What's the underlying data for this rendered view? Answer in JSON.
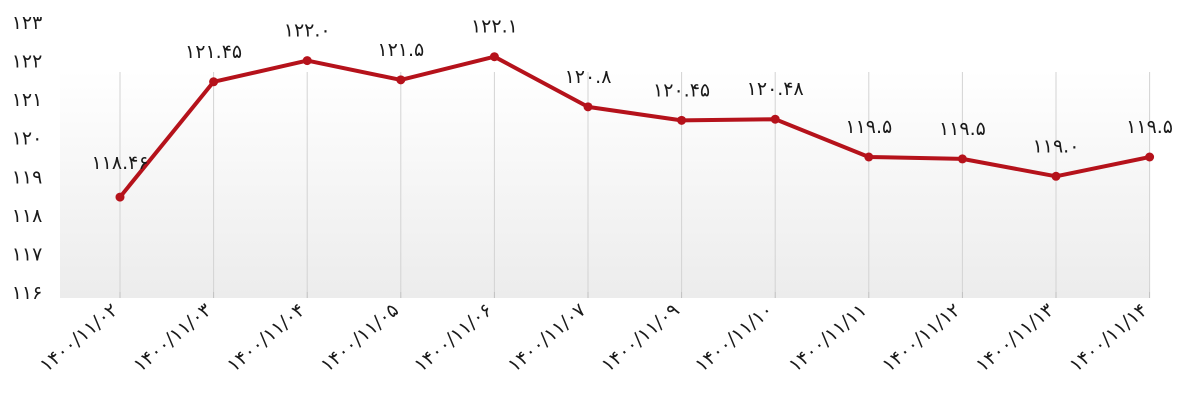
{
  "chart_data": {
    "type": "line",
    "title": "",
    "xlabel": "",
    "ylabel": "",
    "categories": [
      "۱۴۰۰/۱۱/۰۲",
      "۱۴۰۰/۱۱/۰۳",
      "۱۴۰۰/۱۱/۰۴",
      "۱۴۰۰/۱۱/۰۵",
      "۱۴۰۰/۱۱/۰۶",
      "۱۴۰۰/۱۱/۰۷",
      "۱۴۰۰/۱۱/۰۹",
      "۱۴۰۰/۱۱/۱۰",
      "۱۴۰۰/۱۱/۱۱",
      "۱۴۰۰/۱۱/۱۲",
      "۱۴۰۰/۱۱/۱۳",
      "۱۴۰۰/۱۱/۱۴"
    ],
    "values": [
      118.46,
      121.45,
      122.0,
      121.5,
      122.1,
      120.8,
      120.45,
      120.48,
      119.5,
      119.45,
      119.0,
      119.5
    ],
    "data_labels": [
      "۱۱۸.۴۶",
      "۱۲۱.۴۵",
      "۱۲۲.۰",
      "۱۲۱.۵",
      "۱۲۲.۱",
      "۱۲۰.۸",
      "۱۲۰.۴۵",
      "۱۲۰.۴۸",
      "۱۱۹.۵",
      "۱۱۹.۵",
      "۱۱۹.۰",
      "۱۱۹.۵"
    ],
    "yticks": [
      "۱۱۶",
      "۱۱۷",
      "۱۱۸",
      "۱۱۹",
      "۱۲۰",
      "۱۲۱",
      "۱۲۲",
      "۱۲۳"
    ],
    "ylim": [
      116,
      123
    ],
    "grid": "vertical",
    "legend": "none",
    "line_color": "#b5121b",
    "background_gradient": [
      "#ffffff",
      "#ececec"
    ]
  }
}
